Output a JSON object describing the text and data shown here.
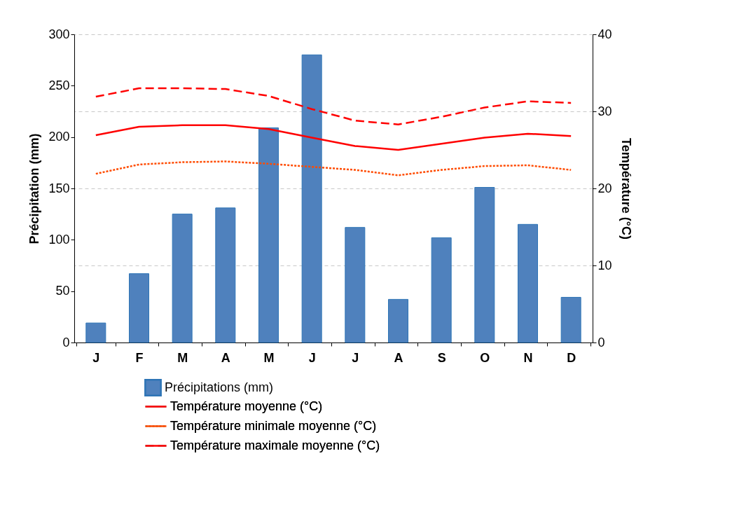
{
  "chart_data": {
    "type": "bar",
    "categories": [
      "J",
      "F",
      "M",
      "A",
      "M",
      "J",
      "J",
      "A",
      "S",
      "O",
      "N",
      "D"
    ],
    "ylabel": "Précipitation (mm)",
    "y2label": "Température (°C)",
    "ylim": [
      0,
      300
    ],
    "yticks": [
      0,
      50,
      100,
      150,
      200,
      250,
      300
    ],
    "y2lim": [
      0,
      40
    ],
    "y2ticks": [
      0,
      10,
      20,
      30,
      40
    ],
    "grid": "y2",
    "legend": "bottom",
    "series": [
      {
        "name": "Précipitations (mm)",
        "color": "#4f81bd",
        "values": [
          19,
          67,
          125,
          131,
          209,
          280,
          112,
          42,
          102,
          151,
          115,
          44
        ]
      },
      {
        "name": "Température moyenne (°C)",
        "type": "line",
        "axis": "y2",
        "line_style": "solid",
        "color": "#ff0000",
        "values": [
          26.9,
          28.0,
          28.2,
          28.2,
          27.7,
          26.6,
          25.5,
          25.0,
          25.8,
          26.6,
          27.1,
          26.8
        ]
      },
      {
        "name": "Température minimale moyenne (°C)",
        "type": "line",
        "axis": "y2",
        "line_style": "dotted",
        "color": "#ff4b00",
        "values": [
          21.9,
          23.1,
          23.4,
          23.5,
          23.2,
          22.8,
          22.4,
          21.7,
          22.4,
          22.9,
          23.0,
          22.4
        ]
      },
      {
        "name": "Température maximale moyenne (°C)",
        "type": "line",
        "axis": "y2",
        "line_style": "dashed",
        "color": "#ff0000",
        "values": [
          31.9,
          33.0,
          33.0,
          32.9,
          32.0,
          30.3,
          28.8,
          28.3,
          29.3,
          30.5,
          31.3,
          31.1
        ]
      }
    ]
  }
}
